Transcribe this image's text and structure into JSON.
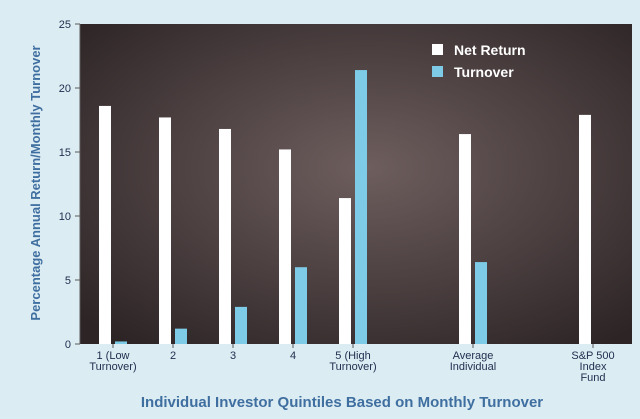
{
  "chart_data": {
    "type": "bar",
    "title": "",
    "xlabel": "Individual Investor Quintiles Based on Monthly Turnover",
    "ylabel": "Percentage Annual Return/Monthly Turnover",
    "ylim": [
      0,
      25
    ],
    "yticks": [
      0,
      5,
      10,
      15,
      20,
      25
    ],
    "grid": false,
    "legend_position": "top-right",
    "categories": [
      [
        "1 (Low",
        "Turnover)"
      ],
      [
        "2"
      ],
      [
        "3"
      ],
      [
        "4"
      ],
      [
        "5 (High",
        "Turnover)"
      ],
      [
        "Average",
        "Individual"
      ],
      [
        "S&P 500",
        "Index",
        "Fund"
      ]
    ],
    "series": [
      {
        "name": "Net Return",
        "color": "#ffffff",
        "values": [
          18.6,
          17.7,
          16.8,
          15.2,
          11.4,
          16.4,
          17.9
        ]
      },
      {
        "name": "Turnover",
        "color": "#7dcbe6",
        "values": [
          0.2,
          1.2,
          2.9,
          6.0,
          21.4,
          6.4,
          null
        ]
      }
    ]
  }
}
